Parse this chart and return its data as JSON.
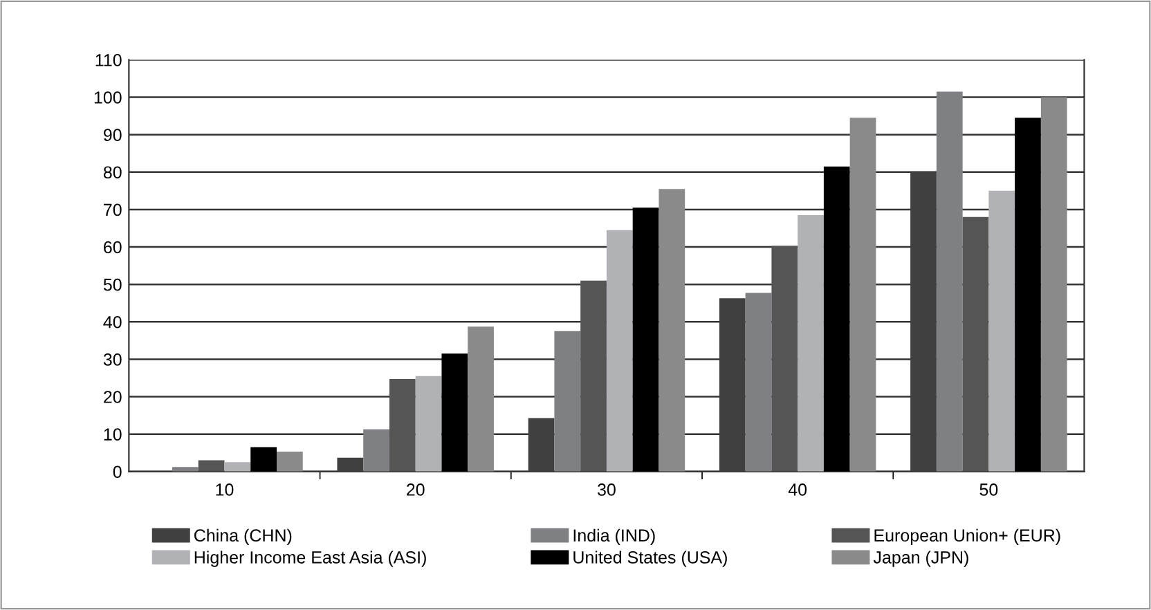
{
  "chart_data": {
    "type": "bar",
    "categories": [
      "10",
      "20",
      "30",
      "40",
      "50"
    ],
    "series": [
      {
        "name": "China (CHN)",
        "color": "#404040",
        "values": [
          0,
          3.7,
          14.3,
          46.3,
          80
        ]
      },
      {
        "name": "India (IND)",
        "color": "#7f8083",
        "values": [
          1.2,
          11.3,
          37.5,
          47.7,
          101.5
        ]
      },
      {
        "name": "European Union+ (EUR)",
        "color": "#555555",
        "values": [
          3,
          24.7,
          51,
          60.3,
          68
        ]
      },
      {
        "name": "Higher Income East Asia (ASI)",
        "color": "#b0b2b5",
        "values": [
          2.5,
          25.5,
          64.5,
          68.5,
          75
        ]
      },
      {
        "name": "United States (USA)",
        "color": "#000000",
        "values": [
          6.5,
          31.5,
          70.5,
          81.5,
          94.5
        ]
      },
      {
        "name": "Japan (JPN)",
        "color": "#8a8a8a",
        "values": [
          5.3,
          38.7,
          75.5,
          94.5,
          100
        ]
      }
    ],
    "ylim": [
      0,
      110
    ],
    "yticks": [
      0,
      10,
      20,
      30,
      40,
      50,
      60,
      70,
      80,
      90,
      100,
      110
    ],
    "grid": "y",
    "legend": "bottom"
  }
}
